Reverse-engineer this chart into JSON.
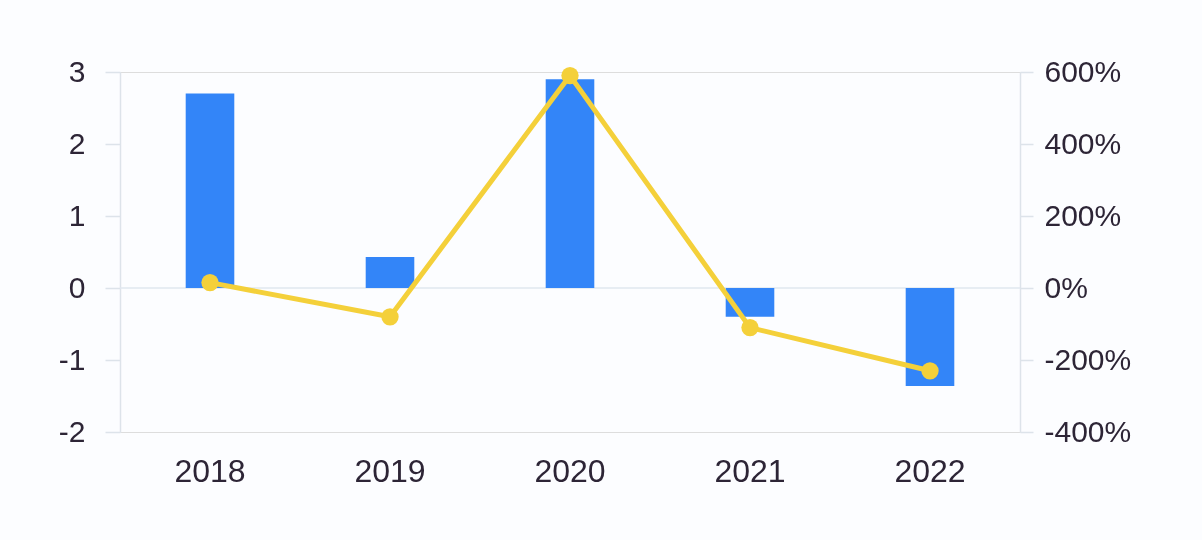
{
  "chart_data": {
    "type": "bar",
    "categories": [
      "2018",
      "2019",
      "2020",
      "2021",
      "2022"
    ],
    "series": [
      {
        "color": "#3385f8",
        "values": [
          2.7,
          0.43,
          2.9,
          -0.4,
          -1.36
        ]
      },
      {
        "type": "line",
        "axis": "y2",
        "color": "#f4d03a",
        "values": [
          15,
          -80,
          590,
          -110,
          -230
        ]
      }
    ],
    "ylim": [
      -2,
      3
    ],
    "yticks": [
      -2,
      -1,
      0,
      1,
      2,
      3
    ],
    "y2lim": [
      -400,
      600
    ],
    "y2ticks": [
      {
        "value": -400,
        "label": "-400%"
      },
      {
        "value": -200,
        "label": "-200%"
      },
      {
        "value": 0,
        "label": "0%"
      },
      {
        "value": 200,
        "label": "200%"
      },
      {
        "value": 400,
        "label": "400%"
      },
      {
        "value": 600,
        "label": "600%"
      }
    ],
    "ref_lines": [
      {
        "axis": "y",
        "value": 0,
        "color": "#e1e7ef"
      }
    ],
    "grid": false,
    "marker": "circle",
    "line_style": "solid"
  }
}
